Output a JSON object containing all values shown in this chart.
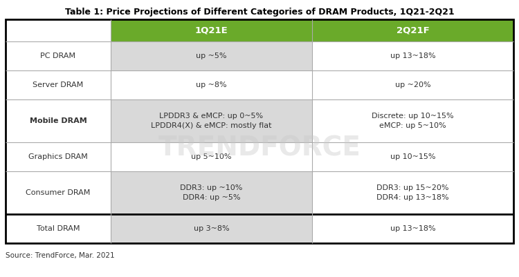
{
  "title": "Table 1: Price Projections of Different Categories of DRAM Products, 1Q21-2Q21",
  "source": "Source: TrendForce, Mar. 2021",
  "col_headers": [
    "1Q21E",
    "2Q21F"
  ],
  "row_labels": [
    "PC DRAM",
    "Server DRAM",
    "Mobile DRAM",
    "Graphics DRAM",
    "Consumer DRAM",
    "Total DRAM"
  ],
  "col1_data": [
    "up ~5%",
    "up ~8%",
    "LPDDR3 & eMCP: up 0~5%\nLPDDR4(X) & eMCP: mostly flat",
    "up 5~10%",
    "DDR3: up ~10%\nDDR4: up ~5%",
    "up 3~8%"
  ],
  "col2_data": [
    "up 13~18%",
    "up ~20%",
    "Discrete: up 10~15%\neMCP: up 5~10%",
    "up 10~15%",
    "DDR3: up 15~20%\nDDR4: up 13~18%",
    "up 13~18%"
  ],
  "header_bg_color": "#6aaa2a",
  "header_text_color": "#ffffff",
  "col1_row_bg": "#d9d9d9",
  "col2_row_bg": "#ffffff",
  "label_col_bg": "#ffffff",
  "outer_border_color": "#000000",
  "inner_border_color": "#aaaaaa",
  "title_color": "#000000",
  "text_color": "#333333",
  "source_color": "#333333",
  "fig_width": 7.5,
  "fig_height": 4.01,
  "watermark_color": "#c8c8c8",
  "watermark_alpha": 0.4
}
